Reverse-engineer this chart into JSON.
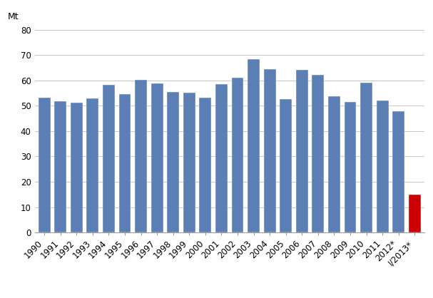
{
  "categories": [
    "1990",
    "1991",
    "1992",
    "1993",
    "1994",
    "1995",
    "1996",
    "1997",
    "1998",
    "1999",
    "2000",
    "2001",
    "2002",
    "2003",
    "2004",
    "2005",
    "2006",
    "2007",
    "2008",
    "2009",
    "2010",
    "2011",
    "2012*",
    "I/2013*"
  ],
  "values": [
    53.3,
    51.8,
    51.1,
    53.0,
    58.3,
    54.7,
    60.3,
    58.9,
    55.5,
    55.1,
    53.2,
    58.5,
    61.0,
    68.5,
    64.5,
    52.7,
    64.3,
    62.2,
    53.7,
    51.5,
    59.2,
    52.1,
    47.8,
    15.0
  ],
  "bar_colors": [
    "#5b7fb5",
    "#5b7fb5",
    "#5b7fb5",
    "#5b7fb5",
    "#5b7fb5",
    "#5b7fb5",
    "#5b7fb5",
    "#5b7fb5",
    "#5b7fb5",
    "#5b7fb5",
    "#5b7fb5",
    "#5b7fb5",
    "#5b7fb5",
    "#5b7fb5",
    "#5b7fb5",
    "#5b7fb5",
    "#5b7fb5",
    "#5b7fb5",
    "#5b7fb5",
    "#5b7fb5",
    "#5b7fb5",
    "#5b7fb5",
    "#5b7fb5",
    "#cc0000"
  ],
  "ylabel": "Mt",
  "ylim": [
    0,
    80
  ],
  "yticks": [
    0,
    10,
    20,
    30,
    40,
    50,
    60,
    70,
    80
  ],
  "background_color": "#ffffff",
  "grid_color": "#bbbbbb",
  "bar_edge_color": "#ffffff",
  "tick_fontsize": 8.5
}
